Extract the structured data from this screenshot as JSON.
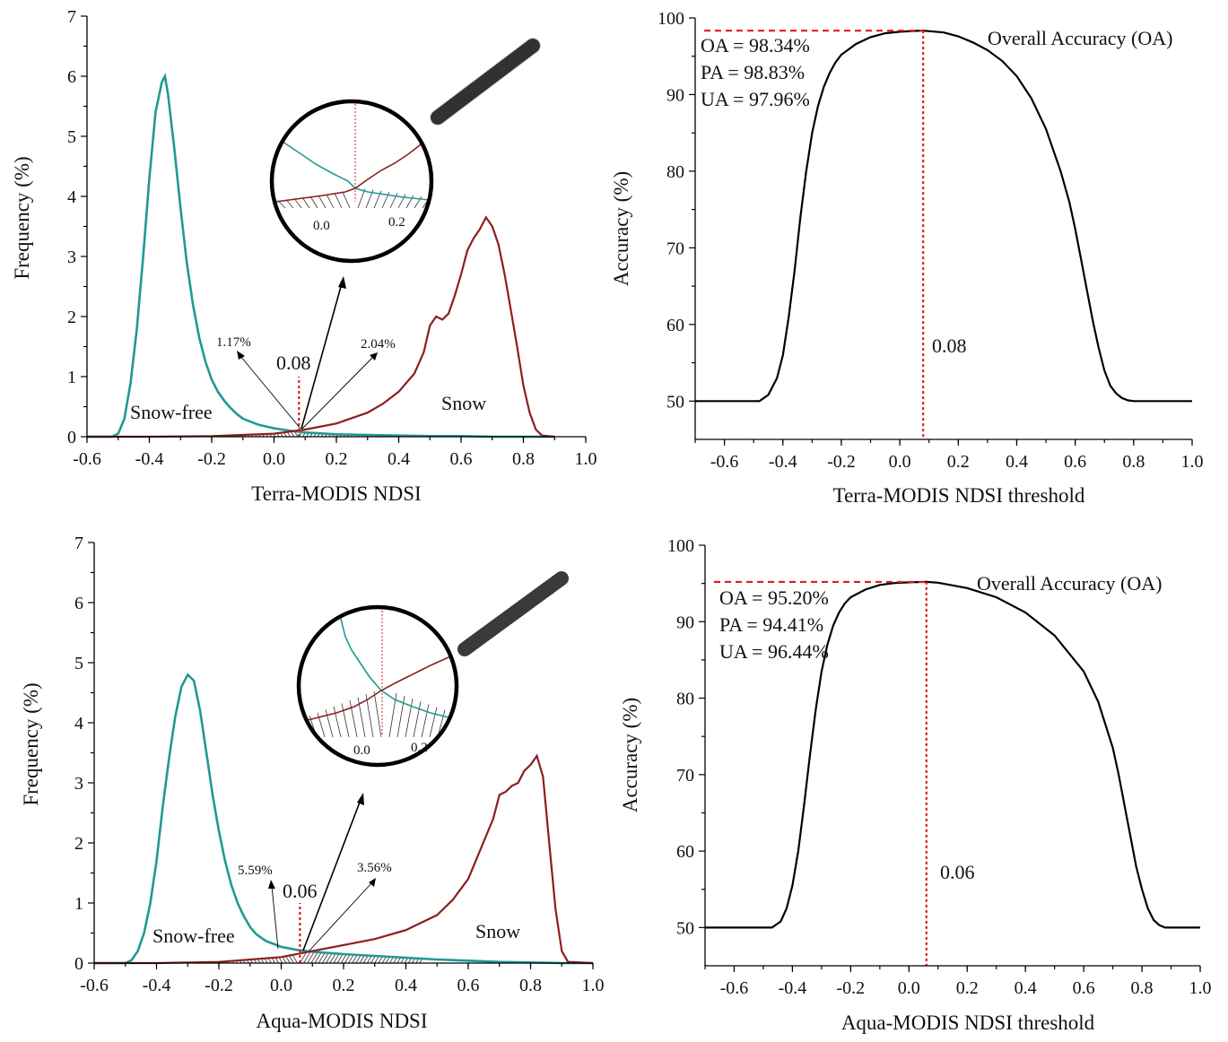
{
  "chart_data": [
    {
      "type": "line",
      "panel": "top-left",
      "xlabel": "Terra-MODIS NDSI",
      "ylabel": "Frequency (%)",
      "xlim": [
        -0.6,
        1.0
      ],
      "ylim": [
        0,
        7
      ],
      "xticks": [
        "-0.6",
        "-0.4",
        "-0.2",
        "0.0",
        "0.2",
        "0.4",
        "0.6",
        "0.8",
        "1.0"
      ],
      "yticks": [
        "0",
        "1",
        "2",
        "3",
        "4",
        "5",
        "6",
        "7"
      ],
      "threshold": 0.08,
      "threshold_label": "0.08",
      "left_area_label": "1.17%",
      "right_area_label": "2.04%",
      "snow_free_label": "Snow-free",
      "snow_label": "Snow",
      "inset_ticks": [
        "0.0",
        "0.2"
      ],
      "colors": {
        "snow_free": "#1f9a93",
        "snow": "#8b1f1f",
        "threshold": "#e01b1b"
      },
      "series": [
        {
          "label": "Snow-free",
          "x": [
            -0.6,
            -0.52,
            -0.5,
            -0.48,
            -0.46,
            -0.44,
            -0.42,
            -0.4,
            -0.38,
            -0.36,
            -0.35,
            -0.34,
            -0.32,
            -0.3,
            -0.28,
            -0.26,
            -0.24,
            -0.22,
            -0.2,
            -0.18,
            -0.16,
            -0.14,
            -0.12,
            -0.1,
            -0.05,
            0.0,
            0.05,
            0.1,
            0.2,
            0.3,
            0.4,
            0.5,
            0.6,
            0.7,
            0.8,
            0.9
          ],
          "y": [
            0,
            0,
            0.05,
            0.3,
            0.9,
            1.8,
            3.0,
            4.3,
            5.4,
            5.9,
            6.0,
            5.7,
            4.8,
            3.8,
            2.9,
            2.2,
            1.65,
            1.25,
            0.95,
            0.75,
            0.6,
            0.48,
            0.38,
            0.3,
            0.2,
            0.14,
            0.1,
            0.07,
            0.04,
            0.03,
            0.02,
            0.01,
            0.01,
            0.0,
            0,
            0
          ]
        },
        {
          "label": "Snow",
          "x": [
            -0.6,
            -0.4,
            -0.2,
            0.0,
            0.1,
            0.2,
            0.3,
            0.35,
            0.4,
            0.45,
            0.48,
            0.5,
            0.52,
            0.54,
            0.56,
            0.58,
            0.6,
            0.62,
            0.64,
            0.66,
            0.68,
            0.7,
            0.72,
            0.74,
            0.76,
            0.78,
            0.8,
            0.82,
            0.84,
            0.86,
            0.9
          ],
          "y": [
            0,
            0,
            0.01,
            0.05,
            0.12,
            0.22,
            0.4,
            0.55,
            0.75,
            1.05,
            1.4,
            1.85,
            2.0,
            1.95,
            2.05,
            2.35,
            2.7,
            3.1,
            3.3,
            3.45,
            3.65,
            3.5,
            3.2,
            2.7,
            2.1,
            1.5,
            0.85,
            0.4,
            0.12,
            0.02,
            0
          ]
        }
      ]
    },
    {
      "type": "line",
      "panel": "top-right",
      "xlabel": "Terra-MODIS NDSI threshold",
      "ylabel": "Accuracy (%)",
      "xlim": [
        -0.7,
        1.0
      ],
      "ylim": [
        45,
        100
      ],
      "xticks": [
        "-0.6",
        "-0.4",
        "-0.2",
        "0.0",
        "0.2",
        "0.4",
        "0.6",
        "0.8",
        "1.0"
      ],
      "yticks": [
        "50",
        "60",
        "70",
        "80",
        "90",
        "100"
      ],
      "legend": "Overall Accuracy (OA)",
      "oa_text": "OA = 98.34%",
      "pa_text": "PA = 98.83%",
      "ua_text": "UA = 97.96%",
      "max_oa": 98.34,
      "threshold": 0.08,
      "threshold_label": "0.08",
      "series": [
        {
          "label": "Overall Accuracy (OA)",
          "x": [
            -0.7,
            -0.48,
            -0.45,
            -0.42,
            -0.4,
            -0.38,
            -0.36,
            -0.34,
            -0.32,
            -0.3,
            -0.28,
            -0.26,
            -0.24,
            -0.22,
            -0.2,
            -0.15,
            -0.1,
            -0.05,
            0.0,
            0.05,
            0.08,
            0.15,
            0.2,
            0.25,
            0.3,
            0.35,
            0.4,
            0.45,
            0.5,
            0.55,
            0.58,
            0.6,
            0.62,
            0.64,
            0.66,
            0.68,
            0.7,
            0.72,
            0.74,
            0.76,
            0.78,
            0.8,
            0.82,
            1.0
          ],
          "y": [
            50,
            50,
            50.8,
            53,
            56,
            61,
            67,
            74,
            80,
            85,
            88.5,
            91,
            92.8,
            94.2,
            95.2,
            96.6,
            97.5,
            98.0,
            98.2,
            98.3,
            98.34,
            98.1,
            97.6,
            96.8,
            95.8,
            94.4,
            92.4,
            89.5,
            85.5,
            80,
            76,
            72.5,
            68.5,
            64.5,
            60.5,
            57,
            54,
            52,
            51,
            50.4,
            50.1,
            50,
            50,
            50
          ]
        }
      ]
    },
    {
      "type": "line",
      "panel": "bottom-left",
      "xlabel": "Aqua-MODIS NDSI",
      "ylabel": "Frequency (%)",
      "xlim": [
        -0.6,
        1.0
      ],
      "ylim": [
        0,
        7
      ],
      "xticks": [
        "-0.6",
        "-0.4",
        "-0.2",
        "0.0",
        "0.2",
        "0.4",
        "0.6",
        "0.8",
        "1.0"
      ],
      "yticks": [
        "0",
        "1",
        "2",
        "3",
        "4",
        "5",
        "6",
        "7"
      ],
      "threshold": 0.06,
      "threshold_label": "0.06",
      "left_area_label": "5.59%",
      "right_area_label": "3.56%",
      "snow_free_label": "Snow-free",
      "snow_label": "Snow",
      "inset_ticks": [
        "0.0",
        "0.2"
      ],
      "colors": {
        "snow_free": "#1f9a93",
        "snow": "#8b1f1f",
        "threshold": "#e01b1b"
      },
      "series": [
        {
          "label": "Snow-free",
          "x": [
            -0.6,
            -0.5,
            -0.48,
            -0.46,
            -0.44,
            -0.42,
            -0.4,
            -0.38,
            -0.36,
            -0.34,
            -0.32,
            -0.3,
            -0.28,
            -0.26,
            -0.24,
            -0.22,
            -0.2,
            -0.18,
            -0.16,
            -0.14,
            -0.12,
            -0.1,
            -0.08,
            -0.05,
            0.0,
            0.05,
            0.1,
            0.2,
            0.3,
            0.4,
            0.5,
            0.6,
            0.7,
            0.8,
            0.9,
            1.0
          ],
          "y": [
            0,
            0,
            0.05,
            0.2,
            0.5,
            1.0,
            1.7,
            2.6,
            3.4,
            4.1,
            4.6,
            4.8,
            4.7,
            4.2,
            3.5,
            2.8,
            2.2,
            1.7,
            1.3,
            1.0,
            0.78,
            0.6,
            0.48,
            0.37,
            0.27,
            0.22,
            0.19,
            0.15,
            0.12,
            0.09,
            0.06,
            0.04,
            0.02,
            0.01,
            0,
            0
          ]
        },
        {
          "label": "Snow",
          "x": [
            -0.6,
            -0.4,
            -0.2,
            0.0,
            0.1,
            0.2,
            0.3,
            0.4,
            0.5,
            0.55,
            0.6,
            0.64,
            0.68,
            0.7,
            0.72,
            0.74,
            0.76,
            0.78,
            0.8,
            0.82,
            0.84,
            0.86,
            0.88,
            0.9,
            0.92,
            1.0
          ],
          "y": [
            0,
            0,
            0.02,
            0.1,
            0.2,
            0.3,
            0.4,
            0.55,
            0.8,
            1.05,
            1.4,
            1.9,
            2.4,
            2.8,
            2.85,
            2.95,
            3.0,
            3.2,
            3.3,
            3.45,
            3.1,
            2.0,
            0.9,
            0.2,
            0.02,
            0
          ]
        }
      ]
    },
    {
      "type": "line",
      "panel": "bottom-right",
      "xlabel": "Aqua-MODIS NDSI threshold",
      "ylabel": "Accuracy (%)",
      "xlim": [
        -0.7,
        1.0
      ],
      "ylim": [
        45,
        100
      ],
      "xticks": [
        "-0.6",
        "-0.4",
        "-0.2",
        "0.0",
        "0.2",
        "0.4",
        "0.6",
        "0.8",
        "1.0"
      ],
      "yticks": [
        "50",
        "60",
        "70",
        "80",
        "90",
        "100"
      ],
      "legend": "Overall Accuracy (OA)",
      "oa_text": "OA = 95.20%",
      "pa_text": "PA = 94.41%",
      "ua_text": "UA = 96.44%",
      "max_oa": 95.2,
      "threshold": 0.06,
      "threshold_label": "0.06",
      "series": [
        {
          "label": "Overall Accuracy (OA)",
          "x": [
            -0.7,
            -0.47,
            -0.44,
            -0.42,
            -0.4,
            -0.38,
            -0.36,
            -0.34,
            -0.32,
            -0.3,
            -0.28,
            -0.26,
            -0.24,
            -0.22,
            -0.2,
            -0.15,
            -0.1,
            -0.05,
            0.0,
            0.06,
            0.1,
            0.2,
            0.3,
            0.4,
            0.5,
            0.6,
            0.65,
            0.7,
            0.72,
            0.74,
            0.76,
            0.78,
            0.8,
            0.82,
            0.84,
            0.86,
            0.88,
            0.9,
            1.0
          ],
          "y": [
            50,
            50,
            50.8,
            52.5,
            55.5,
            60,
            66,
            72.5,
            78.5,
            83.5,
            87,
            89.5,
            91.2,
            92.4,
            93.2,
            94.2,
            94.8,
            95.05,
            95.15,
            95.2,
            95.1,
            94.4,
            93.2,
            91.2,
            88.2,
            83.5,
            79.5,
            73.5,
            70,
            66,
            62,
            58,
            55,
            52.5,
            51,
            50.3,
            50,
            50,
            50
          ]
        }
      ]
    }
  ]
}
